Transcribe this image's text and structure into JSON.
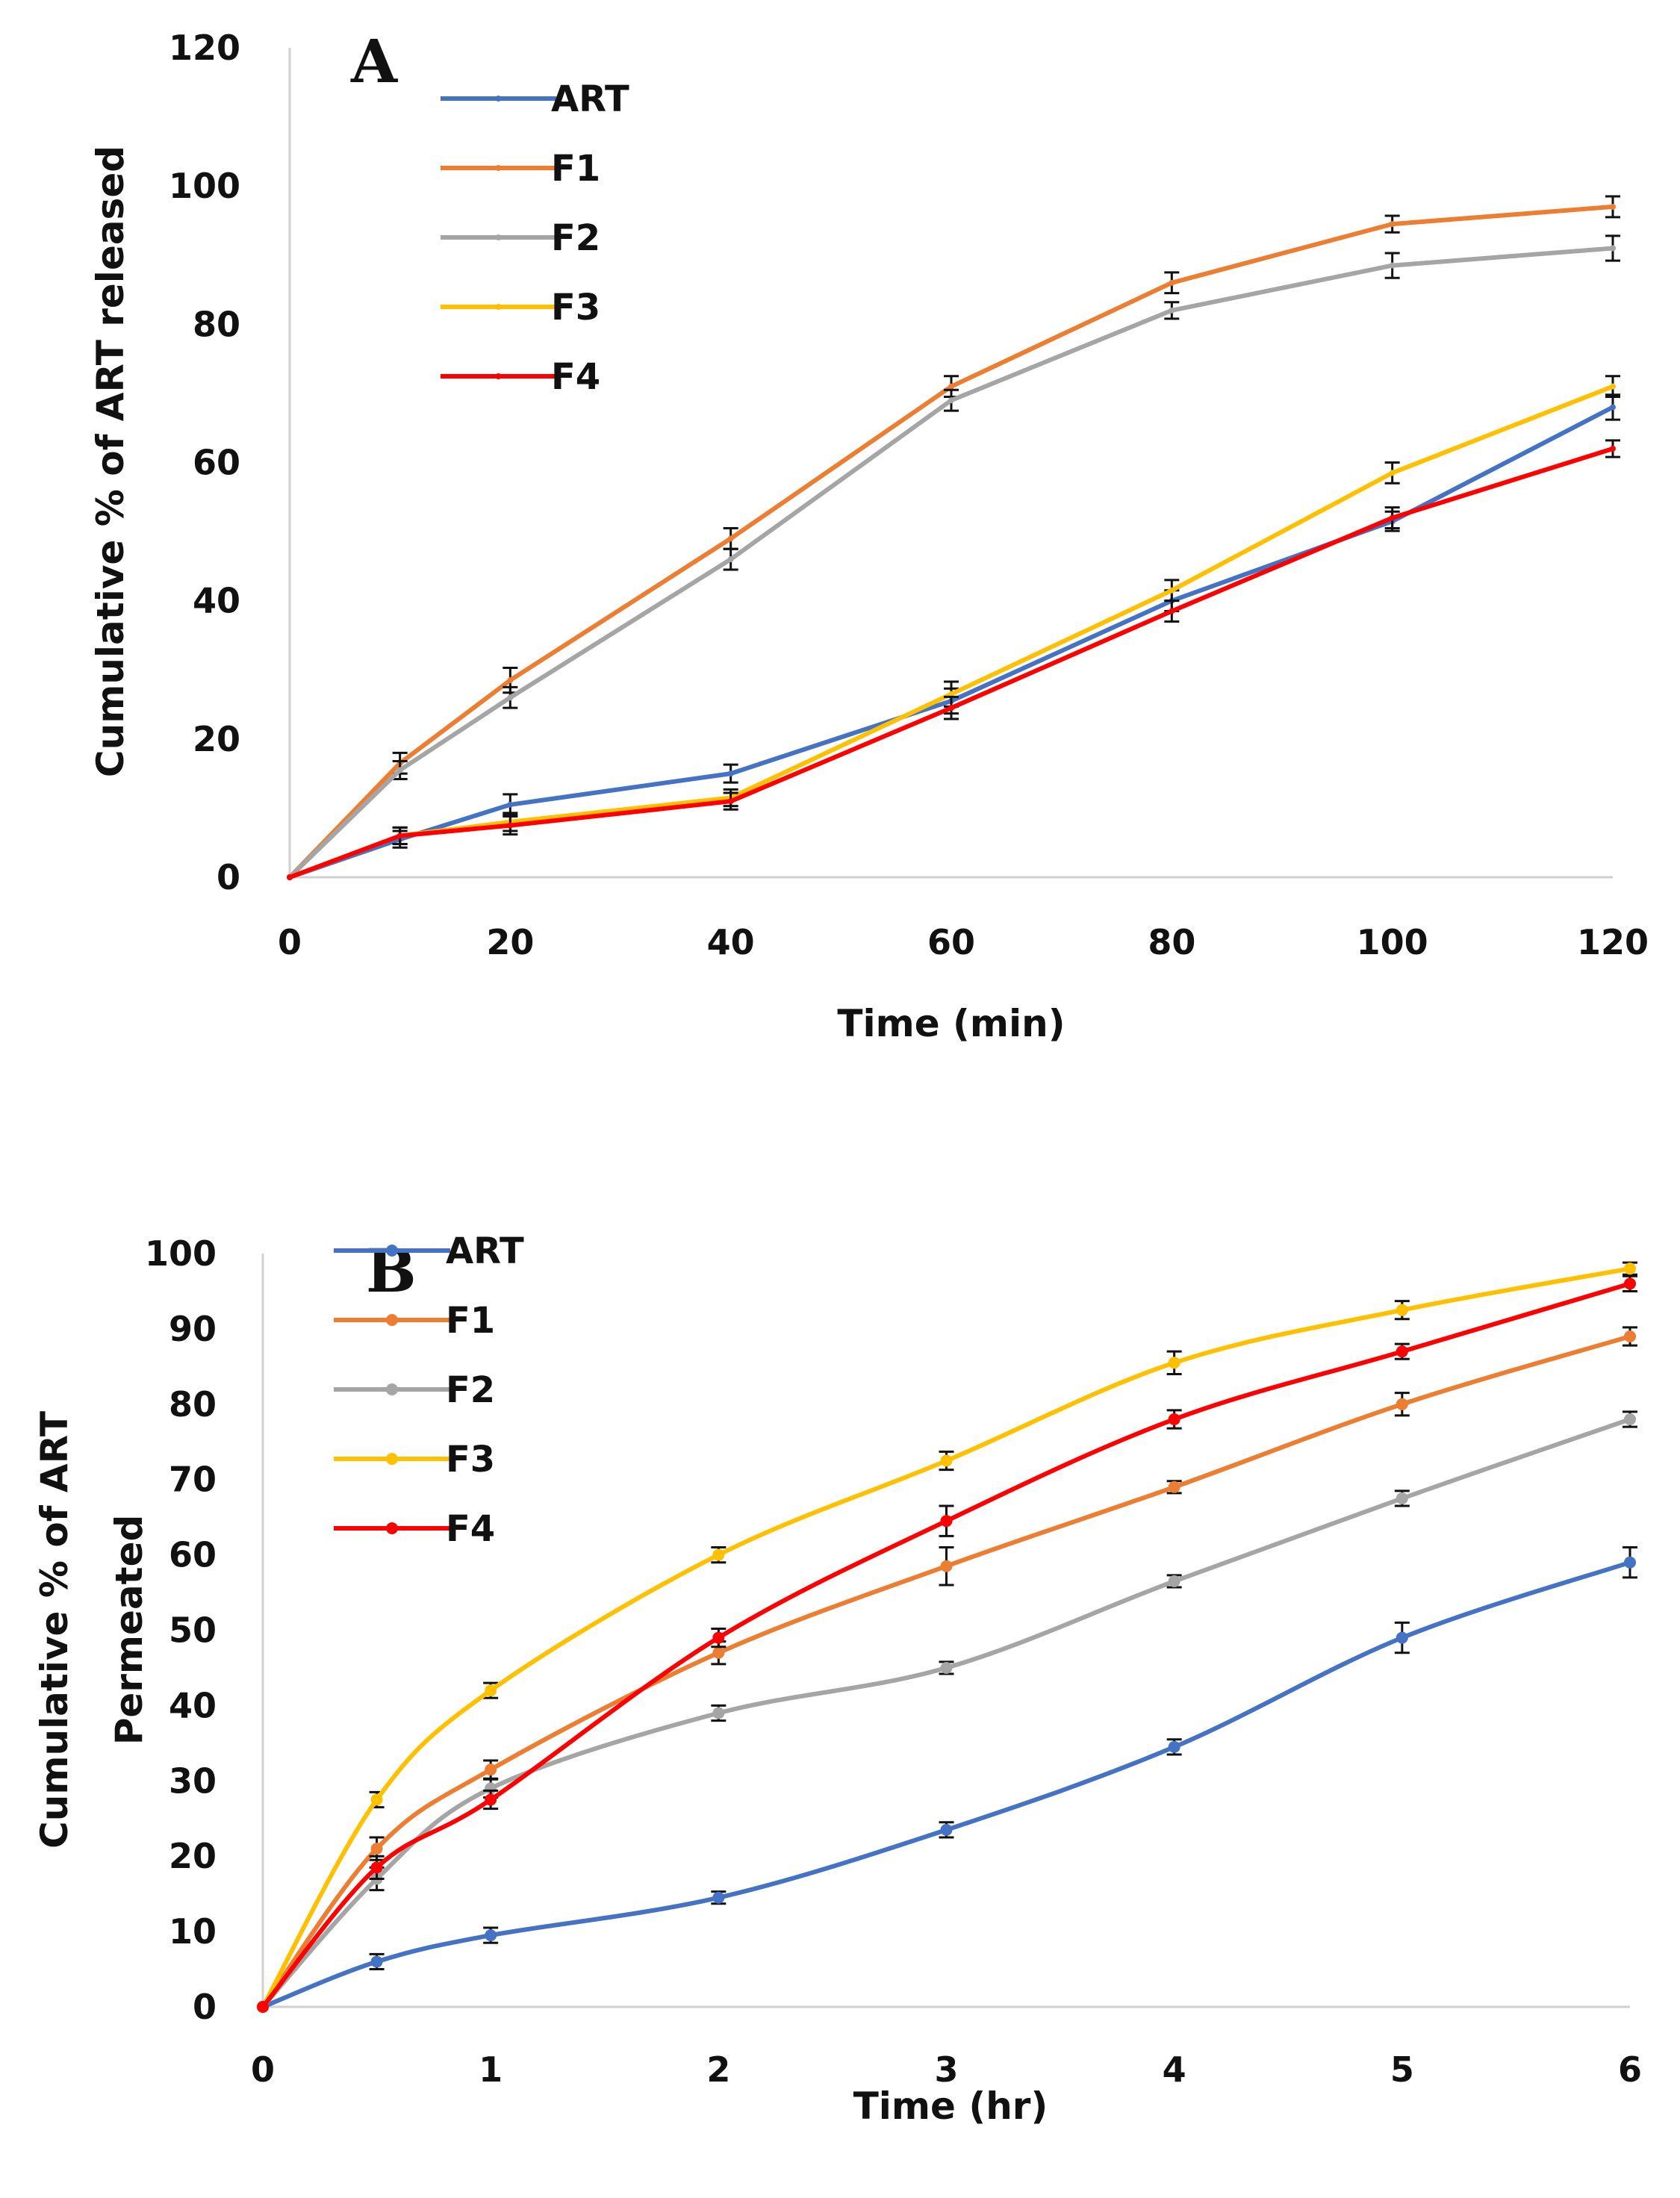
{
  "chart_data": [
    {
      "type": "line",
      "panel_label": "A",
      "title": "",
      "xlabel": "Time (min)",
      "ylabel": "Cumulative % of ART released",
      "x_ticks": [
        "0",
        "20",
        "40",
        "60",
        "80",
        "100",
        "120"
      ],
      "y_ticks": [
        "0",
        "20",
        "40",
        "60",
        "80",
        "100",
        "120"
      ],
      "xlim": [
        0,
        120
      ],
      "ylim": [
        0,
        120
      ],
      "grid": false,
      "legend_position": "top-left",
      "x": [
        0,
        10,
        20,
        40,
        60,
        80,
        100,
        120
      ],
      "series": [
        {
          "name": "ART",
          "color": "#4472c4",
          "values": [
            0,
            5.5,
            10.5,
            15,
            25.5,
            40,
            51.5,
            68
          ],
          "errors": [
            0,
            1.2,
            1.5,
            1.3,
            1.8,
            1.5,
            1.4,
            1.8
          ]
        },
        {
          "name": "F1",
          "color": "#ed7d31",
          "values": [
            0,
            16.5,
            28.5,
            49,
            71,
            86,
            94.5,
            97
          ],
          "errors": [
            0,
            1.5,
            1.8,
            1.5,
            1.5,
            1.5,
            1.2,
            1.5
          ]
        },
        {
          "name": "F2",
          "color": "#a5a5a5",
          "values": [
            0,
            15.5,
            26,
            46,
            69,
            82,
            88.5,
            91
          ],
          "errors": [
            0,
            1.3,
            1.5,
            1.5,
            1.5,
            1.2,
            1.8,
            1.8
          ]
        },
        {
          "name": "F3",
          "color": "#ffc000",
          "values": [
            0,
            6,
            8,
            11.5,
            26.5,
            41.5,
            58.5,
            71
          ],
          "errors": [
            0,
            1.2,
            1.3,
            1.2,
            1.8,
            1.5,
            1.5,
            1.5
          ]
        },
        {
          "name": "F4",
          "color": "#ff0000",
          "values": [
            0,
            6,
            7.5,
            11,
            24.5,
            38.5,
            52,
            62
          ],
          "errors": [
            0,
            1.2,
            1.3,
            1.2,
            1.6,
            1.5,
            1.5,
            1.2
          ]
        }
      ]
    },
    {
      "type": "line",
      "panel_label": "B",
      "title": "",
      "xlabel": "Time (hr)",
      "ylabel": [
        "Cumulative % of ART",
        "Permeated"
      ],
      "x_ticks": [
        "0",
        "1",
        "2",
        "3",
        "4",
        "5",
        "6"
      ],
      "y_ticks": [
        "0",
        "10",
        "20",
        "30",
        "40",
        "50",
        "60",
        "70",
        "80",
        "90",
        "100"
      ],
      "xlim": [
        0,
        6
      ],
      "ylim": [
        0,
        100
      ],
      "grid": false,
      "legend_position": "top-left",
      "x": [
        0,
        0.5,
        1,
        2,
        3,
        4,
        5,
        6
      ],
      "series": [
        {
          "name": "ART",
          "color": "#4472c4",
          "values": [
            0,
            6,
            9.5,
            14.5,
            23.5,
            34.5,
            49,
            59
          ],
          "errors": [
            0,
            1,
            1,
            0.8,
            1,
            1,
            2,
            2
          ]
        },
        {
          "name": "F1",
          "color": "#ed7d31",
          "values": [
            0,
            21,
            31.5,
            47,
            58.5,
            69,
            80,
            89
          ],
          "errors": [
            0,
            1.5,
            1.2,
            1.5,
            2.5,
            0.8,
            1.5,
            1.2
          ]
        },
        {
          "name": "F2",
          "color": "#a5a5a5",
          "values": [
            0,
            17,
            29,
            39,
            45,
            56.5,
            67.5,
            78
          ],
          "errors": [
            0,
            1.5,
            1.2,
            1,
            0.8,
            0.8,
            1,
            1
          ]
        },
        {
          "name": "F3",
          "color": "#ffc000",
          "values": [
            0,
            27.5,
            42,
            60,
            72.5,
            85.5,
            92.5,
            98
          ],
          "errors": [
            0,
            1,
            1,
            1,
            1.2,
            1.5,
            1.2,
            0.8
          ]
        },
        {
          "name": "F4",
          "color": "#ff0000",
          "values": [
            0,
            18.5,
            27.5,
            49,
            64.5,
            78,
            87,
            96
          ],
          "errors": [
            0,
            1.5,
            1.2,
            1.2,
            2,
            1.2,
            1,
            1
          ]
        }
      ]
    }
  ]
}
